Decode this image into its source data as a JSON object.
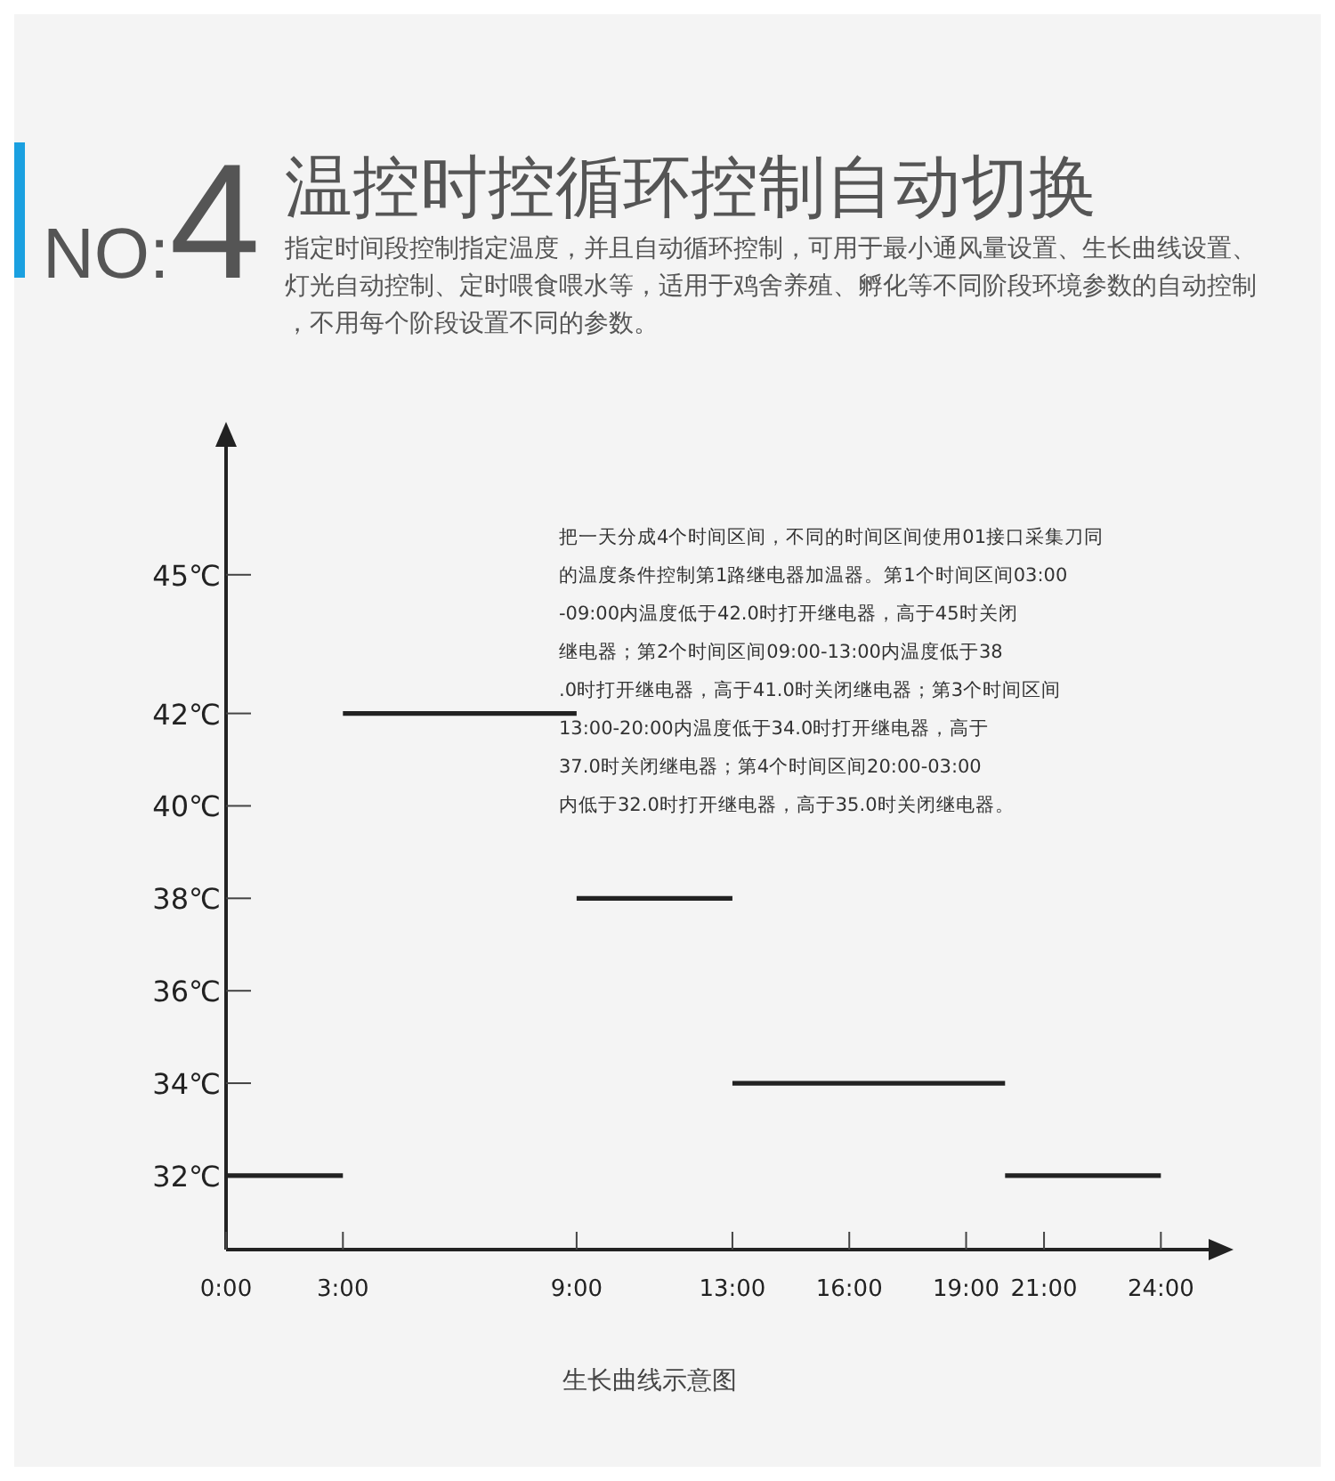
{
  "chart_data": {
    "type": "line",
    "title": "温控时控循环控制自动切换",
    "subtitle": "指定时间段控制指定温度，并且自动循环控制，可用于最小通风量设置、生长曲线设置、灯光自动控制、定时喂食喂水等，适用于鸡舍养殖、孵化等不同阶段环境参数的自动控制，不用每个阶段设置不同的参数。",
    "annotations": [
      "NO:4",
      "把一天分成4个时间区间，不同的时间区间使用01接口采集刀同的温度条件控制第1路继电器加温器。第1个时间区间03:00-09:00内温度低于42.0时打开继电器，高于45时关闭继电器；第2个时间区间09:00-13:00内温度低于38.0时打开继电器，高于41.0时关闭继电器；第3个时间区间13:00-20:00内温度低于34.0时打开继电器，高于37.0时关闭继电器；第4个时间区间20:00-03:00内低于32.0时打开继电器，高于35.0时关闭继电器。",
      "生长曲线示意图"
    ],
    "xlim": [
      0,
      25.5
    ],
    "xticks": [
      {
        "value": 0,
        "label": "0:00"
      },
      {
        "value": 3,
        "label": "3:00"
      },
      {
        "value": 9,
        "label": "9:00"
      },
      {
        "value": 13,
        "label": "13:00"
      },
      {
        "value": 16,
        "label": "16:00"
      },
      {
        "value": 19,
        "label": "19:00"
      },
      {
        "value": 21,
        "label": "21:00"
      },
      {
        "value": 24,
        "label": "24:00"
      }
    ],
    "ylim": [
      30.4,
      48
    ],
    "yticks": [
      {
        "value": 32,
        "label": "32℃"
      },
      {
        "value": 34,
        "label": "34℃"
      },
      {
        "value": 36,
        "label": "36℃"
      },
      {
        "value": 38,
        "label": "38℃"
      },
      {
        "value": 40,
        "label": "40℃"
      },
      {
        "value": 42,
        "label": "42℃"
      },
      {
        "value": 45,
        "label": "45℃"
      }
    ],
    "series": [
      {
        "color": "#222222",
        "x": [
          0,
          3
        ],
        "values": [
          32,
          32
        ]
      },
      {
        "color": "#222222",
        "x": [
          3,
          9
        ],
        "values": [
          42,
          42
        ]
      },
      {
        "color": "#222222",
        "x": [
          9,
          13
        ],
        "values": [
          38,
          38
        ]
      },
      {
        "color": "#222222",
        "x": [
          13,
          20
        ],
        "values": [
          34,
          34
        ]
      },
      {
        "color": "#222222",
        "x": [
          20,
          24
        ],
        "values": [
          32,
          32
        ]
      }
    ]
  }
}
